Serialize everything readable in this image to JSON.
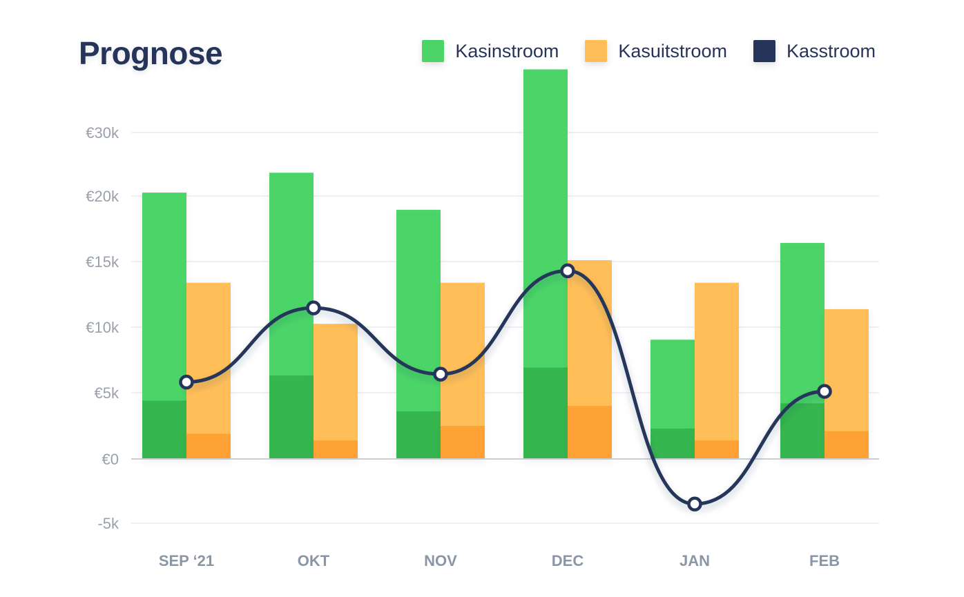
{
  "title": "Prognose",
  "legend": [
    {
      "label": "Kasinstroom",
      "color": "#4cd567"
    },
    {
      "label": "Kasuitstroom",
      "color": "#ffbe58"
    },
    {
      "label": "Kasstroom",
      "color": "#26345a"
    }
  ],
  "chart_data": {
    "type": "bar",
    "title": "Prognose",
    "categories": [
      "SEP ‘21",
      "OKT",
      "NOV",
      "DEC",
      "JAN",
      "FEB"
    ],
    "yticks": [
      {
        "value": -5000,
        "label": "-5k"
      },
      {
        "value": 0,
        "label": "€0"
      },
      {
        "value": 5000,
        "label": "€5k"
      },
      {
        "value": 10000,
        "label": "€10k"
      },
      {
        "value": 15000,
        "label": "€15k"
      },
      {
        "value": 20000,
        "label": "€20k"
      },
      {
        "value": 30000,
        "label": "€30k"
      }
    ],
    "series": [
      {
        "name": "Kasinstroom",
        "type": "bar",
        "color": "#4cd567",
        "dark_color": "#36b64f",
        "values": [
          20100,
          21600,
          18800,
          29400,
          9000,
          16300
        ],
        "dark_values": [
          4400,
          6300,
          3600,
          6900,
          2300,
          4200
        ]
      },
      {
        "name": "Kasuitstroom",
        "type": "bar",
        "color": "#ffbe58",
        "dark_color": "#ffa235",
        "values": [
          13300,
          10200,
          13300,
          15000,
          13300,
          11300
        ],
        "dark_values": [
          1900,
          1400,
          2500,
          4000,
          1400,
          2100
        ]
      },
      {
        "name": "Kasstroom",
        "type": "line",
        "color": "#26345a",
        "values": [
          5800,
          11400,
          6400,
          14200,
          -3400,
          5100
        ]
      }
    ],
    "grid": true,
    "legend_position": "top-right"
  }
}
